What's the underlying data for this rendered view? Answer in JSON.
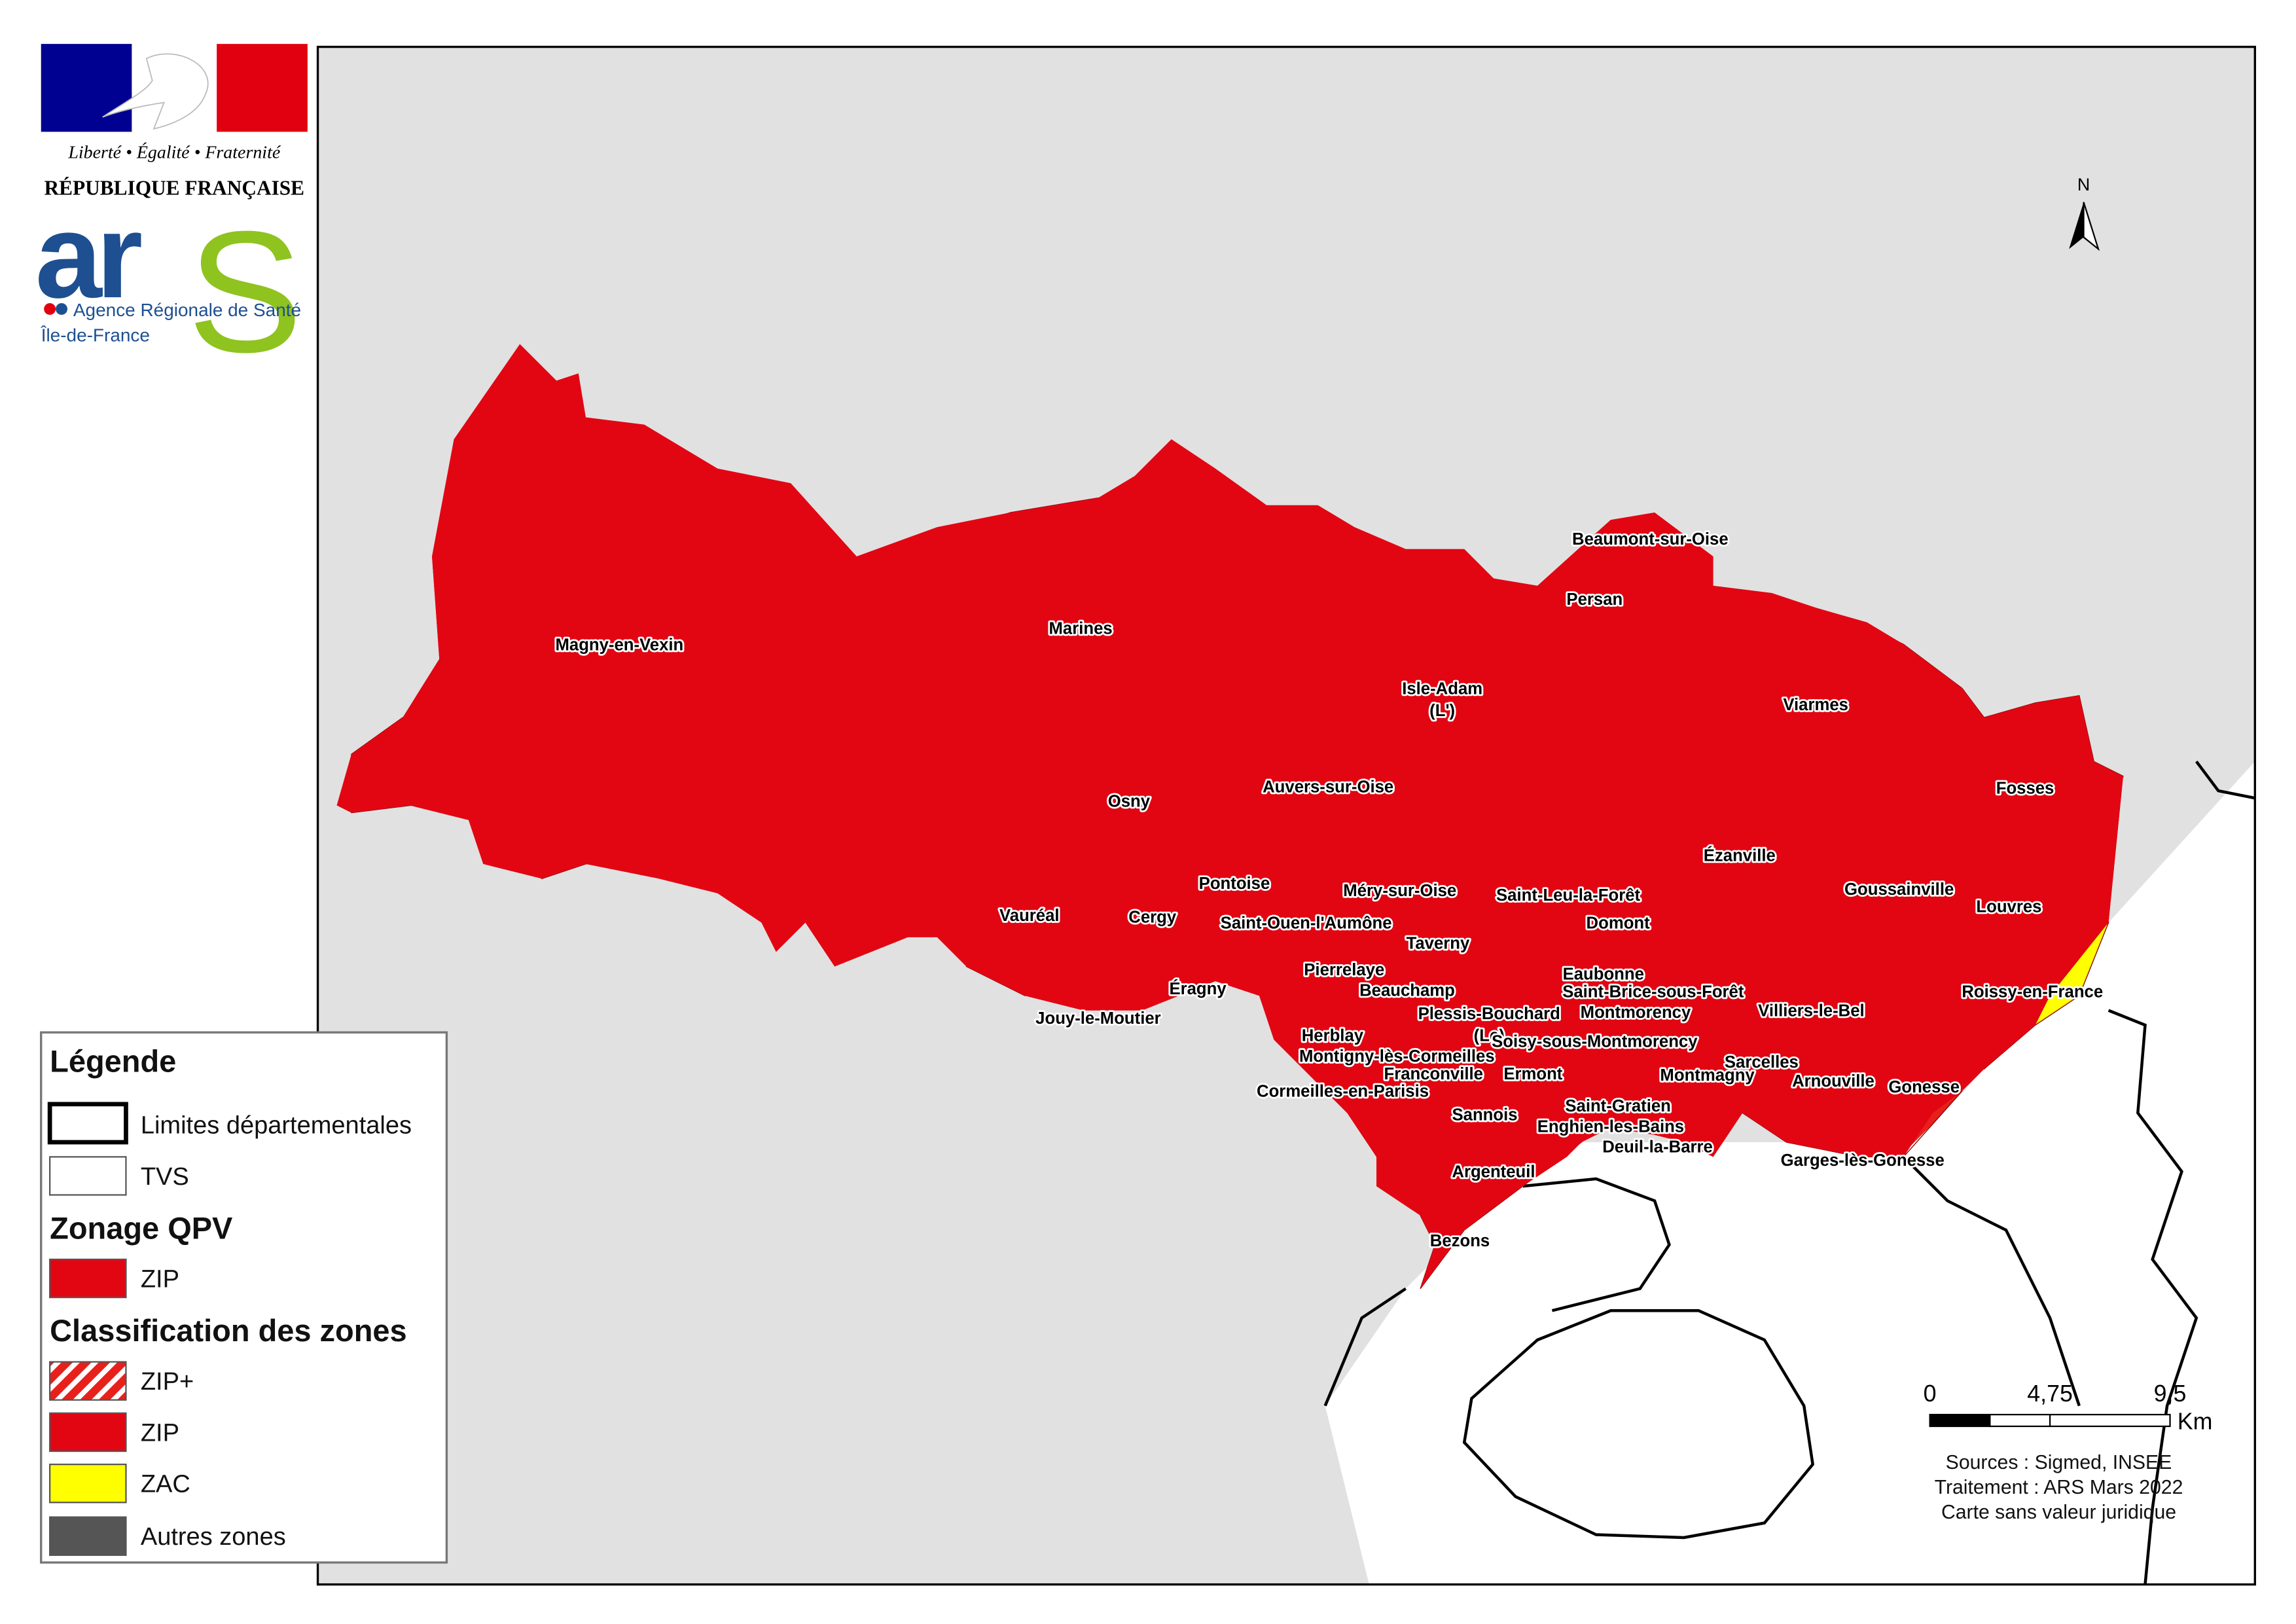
{
  "header": {
    "motto": "Liberté • Égalité • Fraternité",
    "republic": "RÉPUBLIQUE FRANÇAISE",
    "ars_logo": {
      "mark_left": "ar",
      "mark_right": "S",
      "agency": "Agence Régionale de Santé",
      "region": "Île-de-France"
    }
  },
  "map": {
    "north": "N",
    "places": [
      [
        "Magny-en-Vexin"
      ],
      [
        "Marines"
      ],
      [
        "Beaumont-sur-Oise"
      ],
      [
        "Persan"
      ],
      [
        "Isle-Adam",
        "(L')"
      ],
      [
        "Viarmes"
      ],
      [
        "Osny"
      ],
      [
        "Auvers-sur-Oise"
      ],
      [
        "Fosses"
      ],
      [
        "Ézanville"
      ],
      [
        "Goussainville"
      ],
      [
        "Louvres"
      ],
      [
        "Saint-Leu-la-Forêt"
      ],
      [
        "Méry-sur-Oise"
      ],
      [
        "Pontoise"
      ],
      [
        "Vauréal"
      ],
      [
        "Cergy"
      ],
      [
        "Saint-Ouen-l'Aumône"
      ],
      [
        "Domont"
      ],
      [
        "Taverny"
      ],
      [
        "Pierrelaye"
      ],
      [
        "Eaubonne"
      ],
      [
        "Saint-Brice-sous-Forêt"
      ],
      [
        "Roissy-en-France"
      ],
      [
        "Beauchamp"
      ],
      [
        "Éragny"
      ],
      [
        "Plessis-Bouchard",
        "(Le)"
      ],
      [
        "Montmorency"
      ],
      [
        "Villiers-le-Bel"
      ],
      [
        "Jouy-le-Moutier"
      ],
      [
        "Herblay"
      ],
      [
        "Soisy-sous-Montmorency"
      ],
      [
        "Montigny-lès-Cormeilles"
      ],
      [
        "Sarcelles"
      ],
      [
        "Franconville"
      ],
      [
        "Ermont"
      ],
      [
        "Montmagny"
      ],
      [
        "Arnouville"
      ],
      [
        "Cormeilles-en-Parisis"
      ],
      [
        "Gonesse"
      ],
      [
        "Saint-Gratien"
      ],
      [
        "Sannois"
      ],
      [
        "Enghien-les-Bains"
      ],
      [
        "Deuil-la-Barre"
      ],
      [
        "Garges-lès-Gonesse"
      ],
      [
        "Argenteuil"
      ],
      [
        "Bezons"
      ]
    ],
    "scale": {
      "ticks": [
        "0",
        "4,75",
        "9,5"
      ],
      "unit": "Km"
    },
    "sources": [
      "Sources : Sigmed, INSEE",
      "Traitement : ARS Mars 2022",
      "Carte sans valeur juridique"
    ]
  },
  "legend": {
    "title": "Légende",
    "boundaries": [
      "Limites départementales",
      "TVS"
    ],
    "qpv_title": "Zonage QPV",
    "qpv": [
      "ZIP"
    ],
    "classification_title": "Classification des zones",
    "classification": [
      "ZIP+",
      "ZIP",
      "ZAC",
      "Autres zones"
    ]
  }
}
